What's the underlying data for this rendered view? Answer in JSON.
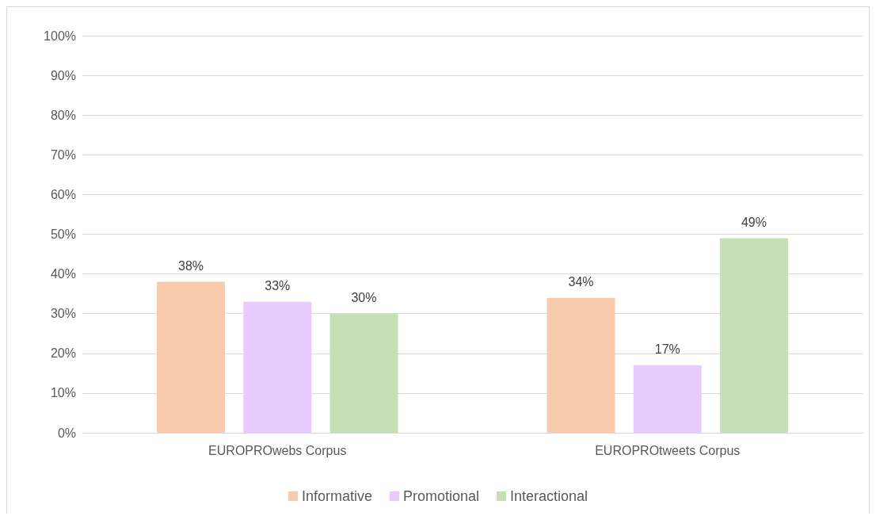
{
  "chart_data": {
    "type": "bar",
    "categories": [
      "EUROPROwebs Corpus",
      "EUROPROtweets Corpus"
    ],
    "series": [
      {
        "name": "Informative",
        "color": "#f8cbad",
        "values": [
          38,
          34
        ],
        "value_labels": [
          "38%",
          "34%"
        ]
      },
      {
        "name": "Promotional",
        "color": "#e8ccff",
        "values": [
          33,
          17
        ],
        "value_labels": [
          "33%",
          "17%"
        ]
      },
      {
        "name": "Interactional",
        "color": "#c5e0b4",
        "values": [
          30,
          49
        ],
        "value_labels": [
          "30%",
          "49%"
        ]
      }
    ],
    "ylim": [
      0,
      100
    ],
    "yticks": [
      {
        "value": 0,
        "label": "0%"
      },
      {
        "value": 10,
        "label": "10%"
      },
      {
        "value": 20,
        "label": "20%"
      },
      {
        "value": 30,
        "label": "30%"
      },
      {
        "value": 40,
        "label": "40%"
      },
      {
        "value": 50,
        "label": "50%"
      },
      {
        "value": 60,
        "label": "60%"
      },
      {
        "value": 70,
        "label": "70%"
      },
      {
        "value": 80,
        "label": "80%"
      },
      {
        "value": 90,
        "label": "90%"
      },
      {
        "value": 100,
        "label": "100%"
      }
    ],
    "grid": "y",
    "legend": "bottom"
  }
}
